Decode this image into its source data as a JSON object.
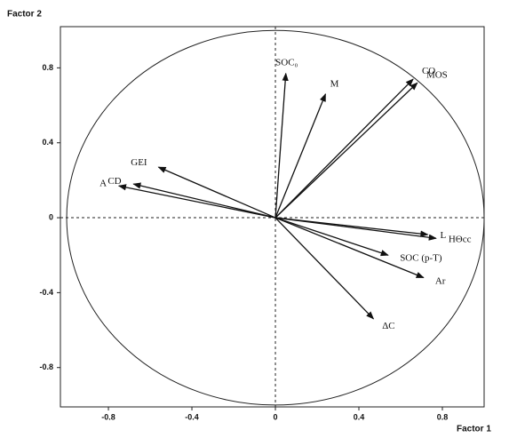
{
  "chart_data": {
    "type": "vector",
    "x_label": "Factor 1",
    "y_label": "Factor 2",
    "xlim": [
      -1.03,
      1.0
    ],
    "ylim": [
      -1.01,
      1.02
    ],
    "xticks": [
      -0.8,
      -0.4,
      0,
      0.4,
      0.8
    ],
    "yticks": [
      -0.8,
      -0.4,
      0,
      0.4,
      0.8
    ],
    "color": "#111111",
    "vectors": [
      {
        "name": "SOC₀",
        "x": 0.05,
        "y": 0.77
      },
      {
        "name": "M",
        "x": 0.24,
        "y": 0.66
      },
      {
        "name": "CO",
        "x": 0.66,
        "y": 0.74
      },
      {
        "name": "MOS",
        "x": 0.68,
        "y": 0.72
      },
      {
        "name": "HΘcc",
        "x": 0.77,
        "y": -0.11
      },
      {
        "name": "L",
        "x": 0.73,
        "y": -0.09
      },
      {
        "name": "SOC (p-T)",
        "x": 0.54,
        "y": -0.2
      },
      {
        "name": "Ar",
        "x": 0.71,
        "y": -0.32
      },
      {
        "name": "ΔC",
        "x": 0.47,
        "y": -0.54
      },
      {
        "name": "GEI",
        "x": -0.56,
        "y": 0.27
      },
      {
        "name": "CD",
        "x": -0.68,
        "y": 0.18
      },
      {
        "name": "A",
        "x": -0.75,
        "y": 0.17
      }
    ]
  }
}
